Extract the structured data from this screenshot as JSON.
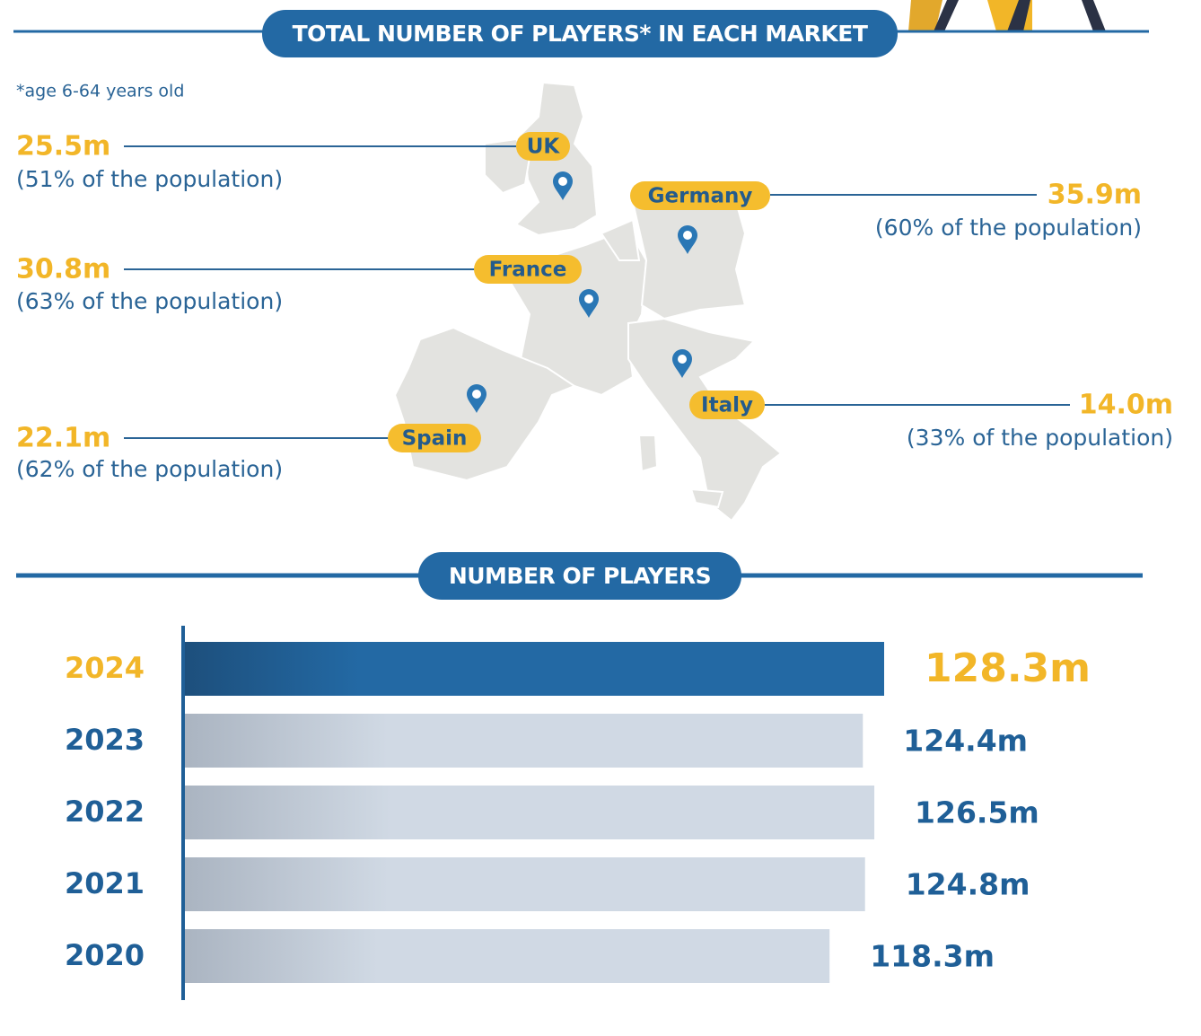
{
  "header": {
    "title": "TOTAL NUMBER OF PLAYERS* IN EACH MARKET",
    "note": "*age 6-64 years old"
  },
  "markets": [
    {
      "name": "UK",
      "players": "25.5m",
      "share": "(51% of the population)"
    },
    {
      "name": "Germany",
      "players": "35.9m",
      "share": "(60% of the population)"
    },
    {
      "name": "France",
      "players": "30.8m",
      "share": "(63% of the population)"
    },
    {
      "name": "Italy",
      "players": "14.0m",
      "share": "(33% of the population)"
    },
    {
      "name": "Spain",
      "players": "22.1m",
      "share": "(62% of the population)"
    }
  ],
  "chart_data": {
    "type": "bar",
    "orientation": "horizontal",
    "title": "NUMBER OF PLAYERS",
    "categories": [
      "2024",
      "2023",
      "2022",
      "2021",
      "2020"
    ],
    "values": [
      128.3,
      124.4,
      126.5,
      124.8,
      118.3
    ],
    "value_labels": [
      "128.3m",
      "124.4m",
      "126.5m",
      "124.8m",
      "118.3m"
    ],
    "color": "#d0d9e4"
  }
}
